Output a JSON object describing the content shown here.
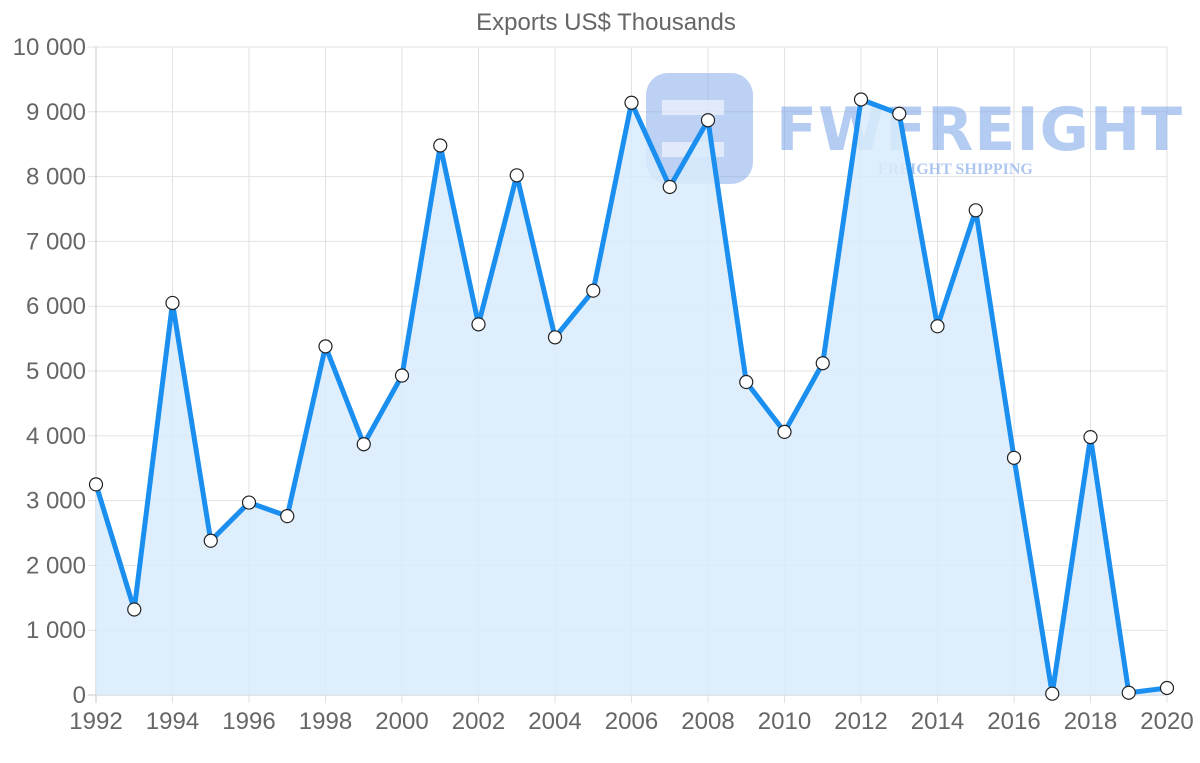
{
  "chart_data": {
    "type": "line",
    "title": "Exports US$ Thousands",
    "xlabel": "",
    "ylabel": "",
    "x": [
      1992,
      1993,
      1994,
      1995,
      1996,
      1997,
      1998,
      1999,
      2000,
      2001,
      2002,
      2003,
      2004,
      2005,
      2006,
      2007,
      2008,
      2009,
      2010,
      2011,
      2012,
      2013,
      2014,
      2015,
      2016,
      2017,
      2018,
      2019,
      2020
    ],
    "series": [
      {
        "name": "Exports US$ Thousands",
        "values": [
          3250,
          1320,
          6050,
          2380,
          2970,
          2760,
          5380,
          3870,
          4930,
          8480,
          5720,
          8020,
          5520,
          6240,
          9140,
          7840,
          8870,
          4830,
          4060,
          5120,
          9190,
          8970,
          5690,
          7480,
          3660,
          20,
          3980,
          35,
          108
        ],
        "line_color": "#1a8ff0",
        "fill_color": "#d8ebfb"
      }
    ],
    "xticks": [
      "1992",
      "1994",
      "1996",
      "1998",
      "2000",
      "2002",
      "2004",
      "2006",
      "2008",
      "2010",
      "2012",
      "2014",
      "2016",
      "2018",
      "2020"
    ],
    "yticks": [
      "0",
      "1 000",
      "2 000",
      "3 000",
      "4 000",
      "5 000",
      "6 000",
      "7 000",
      "8 000",
      "9 000",
      "10 000"
    ],
    "ylim": [
      0,
      10000
    ],
    "xlim": [
      1992,
      2020
    ],
    "grid": true,
    "legend": "none",
    "filled_area": true
  },
  "watermark": {
    "brand": "FWFREIGHT",
    "tagline": "FREIGHT SHIPPING"
  }
}
